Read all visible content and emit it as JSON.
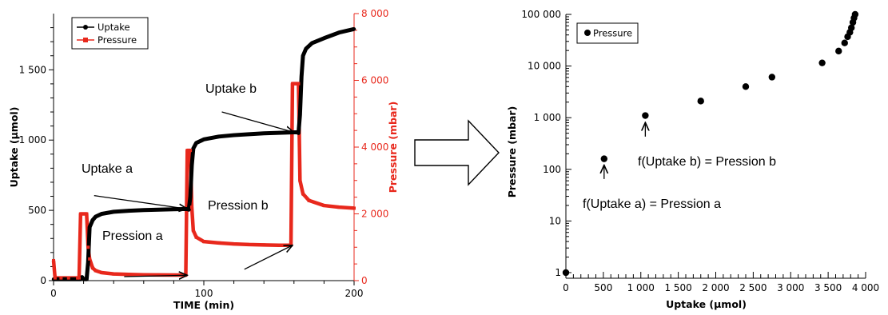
{
  "chart_data": [
    {
      "type": "line",
      "xlabel": "TIME (min)",
      "ylabel": "Uptake (µmol)",
      "y2label": "Pressure (mbar)",
      "xlim": [
        0,
        200
      ],
      "ylim": [
        0,
        1900
      ],
      "y2lim": [
        0,
        8000
      ],
      "x_ticks": [
        0,
        100,
        200
      ],
      "y_ticks": [
        {
          "v": 0,
          "label": "0"
        },
        {
          "v": 500,
          "label": "500"
        },
        {
          "v": 1000,
          "label": "1 000"
        },
        {
          "v": 1500,
          "label": "1 500"
        }
      ],
      "y2_ticks": [
        {
          "v": 0,
          "label": "0"
        },
        {
          "v": 2000,
          "label": "2 000"
        },
        {
          "v": 4000,
          "label": "4 000"
        },
        {
          "v": 6000,
          "label": "6 000"
        },
        {
          "v": 8000,
          "label": "8 000"
        }
      ],
      "legend": {
        "position": "top-left",
        "entries": [
          {
            "name": "Uptake",
            "color": "#000000"
          },
          {
            "name": "Pressure",
            "color": "#e8281c"
          }
        ]
      },
      "series": [
        {
          "name": "Uptake",
          "axis": "left",
          "color": "#000000",
          "points": [
            [
              0,
              10
            ],
            [
              5,
              10
            ],
            [
              10,
              10
            ],
            [
              15,
              10
            ],
            [
              18,
              10
            ],
            [
              19,
              25
            ],
            [
              20,
              10
            ],
            [
              22,
              10
            ],
            [
              23,
              130
            ],
            [
              24,
              380
            ],
            [
              26,
              430
            ],
            [
              28,
              455
            ],
            [
              32,
              475
            ],
            [
              40,
              490
            ],
            [
              50,
              497
            ],
            [
              60,
              502
            ],
            [
              70,
              505
            ],
            [
              80,
              508
            ],
            [
              89,
              510
            ],
            [
              90,
              505
            ],
            [
              91,
              595
            ],
            [
              92,
              820
            ],
            [
              93,
              940
            ],
            [
              95,
              980
            ],
            [
              100,
              1005
            ],
            [
              110,
              1025
            ],
            [
              120,
              1035
            ],
            [
              130,
              1042
            ],
            [
              140,
              1048
            ],
            [
              150,
              1052
            ],
            [
              160,
              1055
            ],
            [
              162,
              1055
            ],
            [
              163,
              1050
            ],
            [
              164,
              1180
            ],
            [
              165,
              1450
            ],
            [
              166,
              1600
            ],
            [
              168,
              1650
            ],
            [
              172,
              1690
            ],
            [
              180,
              1725
            ],
            [
              190,
              1765
            ],
            [
              200,
              1790
            ]
          ]
        },
        {
          "name": "Pressure",
          "axis": "right",
          "color": "#e8281c",
          "points": [
            [
              0,
              600
            ],
            [
              1,
              80
            ],
            [
              5,
              80
            ],
            [
              10,
              80
            ],
            [
              16,
              80
            ],
            [
              17,
              80
            ],
            [
              18,
              2000
            ],
            [
              19,
              2000
            ],
            [
              20,
              2000
            ],
            [
              21,
              2000
            ],
            [
              22,
              2000
            ],
            [
              23,
              1000
            ],
            [
              24,
              650
            ],
            [
              26,
              380
            ],
            [
              28,
              300
            ],
            [
              32,
              240
            ],
            [
              40,
              200
            ],
            [
              50,
              185
            ],
            [
              60,
              175
            ],
            [
              70,
              170
            ],
            [
              80,
              168
            ],
            [
              88,
              165
            ],
            [
              89,
              3900
            ],
            [
              90,
              3900
            ],
            [
              91,
              3900
            ],
            [
              92,
              2200
            ],
            [
              93,
              1500
            ],
            [
              95,
              1300
            ],
            [
              100,
              1170
            ],
            [
              110,
              1130
            ],
            [
              120,
              1100
            ],
            [
              130,
              1080
            ],
            [
              140,
              1070
            ],
            [
              150,
              1060
            ],
            [
              158,
              1060
            ],
            [
              159,
              5900
            ],
            [
              162,
              5900
            ],
            [
              163,
              5900
            ],
            [
              164,
              3000
            ],
            [
              166,
              2600
            ],
            [
              170,
              2400
            ],
            [
              180,
              2250
            ],
            [
              190,
              2200
            ],
            [
              200,
              2170
            ]
          ]
        }
      ],
      "annotations": [
        {
          "text": "Uptake a",
          "from": [
            27,
            605
          ],
          "to": [
            89,
            510
          ]
        },
        {
          "text": "Pression a",
          "from": [
            47,
            120
          ],
          "to": [
            89,
            160
          ]
        },
        {
          "text": "Uptake b",
          "from": [
            112,
            1200
          ],
          "to": [
            160,
            1055
          ]
        },
        {
          "text": "Pression b",
          "from": [
            127,
            340
          ],
          "to": [
            159,
            1060
          ]
        }
      ]
    },
    {
      "type": "scatter",
      "xlabel": "Uptake (µmol)",
      "ylabel": "Pressure (mbar)",
      "xlim": [
        0,
        4000
      ],
      "ylim": [
        1,
        100000
      ],
      "yscale": "log",
      "x_ticks": [
        {
          "v": 0,
          "label": "0"
        },
        {
          "v": 500,
          "label": "500"
        },
        {
          "v": 1000,
          "label": "1 000"
        },
        {
          "v": 1500,
          "label": "1 500"
        },
        {
          "v": 2000,
          "label": "2 000"
        },
        {
          "v": 2500,
          "label": "2 500"
        },
        {
          "v": 3000,
          "label": "3 000"
        },
        {
          "v": 3500,
          "label": "3 500"
        },
        {
          "v": 4000,
          "label": "4 000"
        }
      ],
      "y_ticks": [
        {
          "v": 1,
          "label": "1"
        },
        {
          "v": 10,
          "label": "10"
        },
        {
          "v": 100,
          "label": "100"
        },
        {
          "v": 1000,
          "label": "1 000"
        },
        {
          "v": 10000,
          "label": "10 000"
        },
        {
          "v": 100000,
          "label": "100 000"
        }
      ],
      "legend": {
        "position": "top-left",
        "entries": [
          {
            "name": "Pressure",
            "color": "#000000"
          }
        ]
      },
      "series": [
        {
          "name": "Pressure",
          "color": "#000000",
          "points": [
            [
              0,
              0.8
            ],
            [
              510,
              160
            ],
            [
              1060,
              1100
            ],
            [
              1800,
              2100
            ],
            [
              2400,
              4000
            ],
            [
              2750,
              6100
            ],
            [
              3420,
              11500
            ],
            [
              3640,
              19500
            ],
            [
              3720,
              28000
            ],
            [
              3760,
              37000
            ],
            [
              3790,
              45000
            ],
            [
              3810,
              55000
            ],
            [
              3830,
              70000
            ],
            [
              3845,
              85000
            ],
            [
              3860,
              100000
            ]
          ]
        }
      ],
      "annotations": [
        {
          "text": "f(Uptake a) = Pression a",
          "from": [
            510,
            65
          ],
          "to": [
            510,
            150
          ]
        },
        {
          "text": "f(Uptake b) = Pression b",
          "from": [
            1060,
            430
          ],
          "to": [
            1060,
            1000
          ]
        }
      ]
    }
  ]
}
